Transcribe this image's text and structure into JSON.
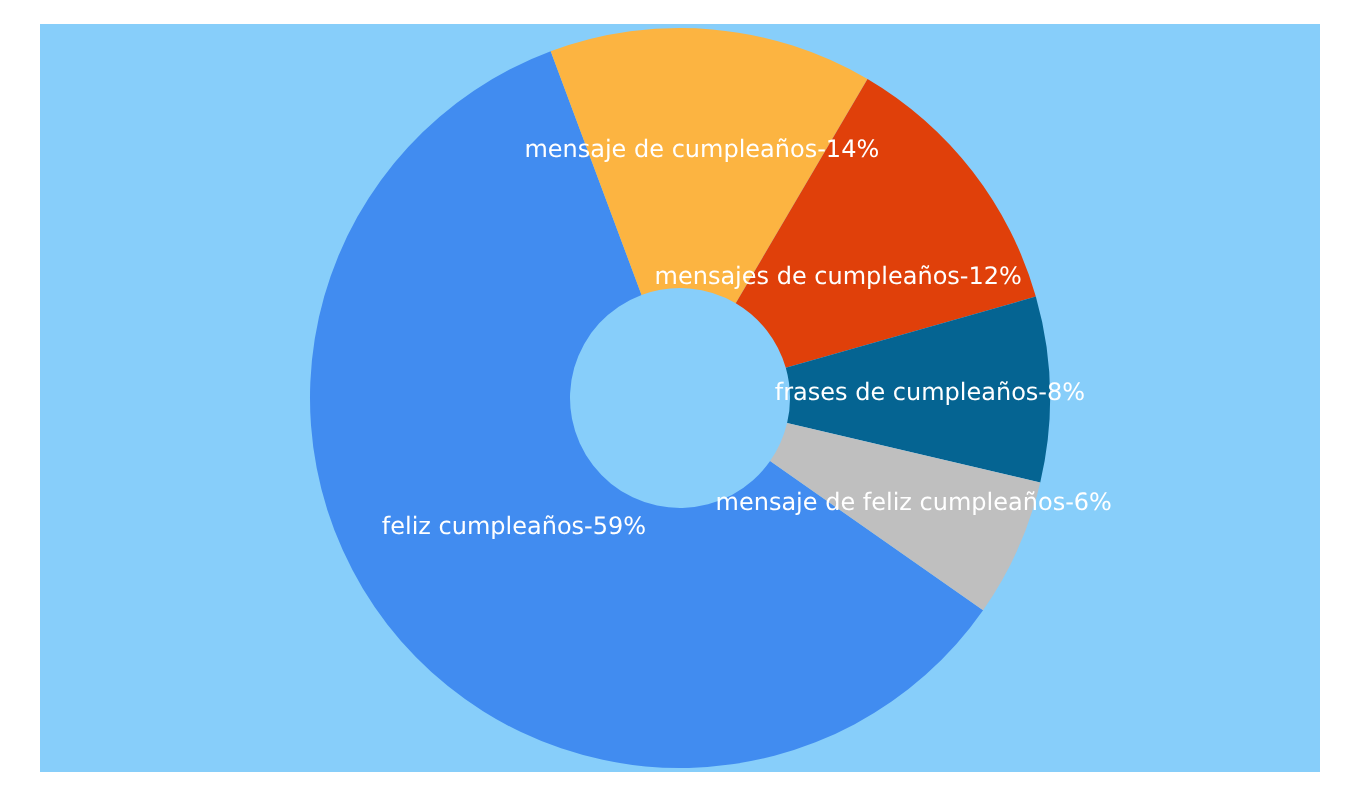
{
  "chart_data": {
    "type": "donut",
    "categories": [
      "feliz cumpleaños",
      "mensaje de cumpleaños",
      "mensajes de cumpleaños",
      "frases de cumpleaños",
      "mensaje de feliz cumpleaños"
    ],
    "values": [
      59,
      14,
      12,
      8,
      6
    ],
    "colors": [
      "#418cf0",
      "#fcb441",
      "#e0400a",
      "#056492",
      "#bfbfbf"
    ],
    "value_labels": [
      "59%",
      "14%",
      "12%",
      "8%",
      "6%"
    ]
  }
}
